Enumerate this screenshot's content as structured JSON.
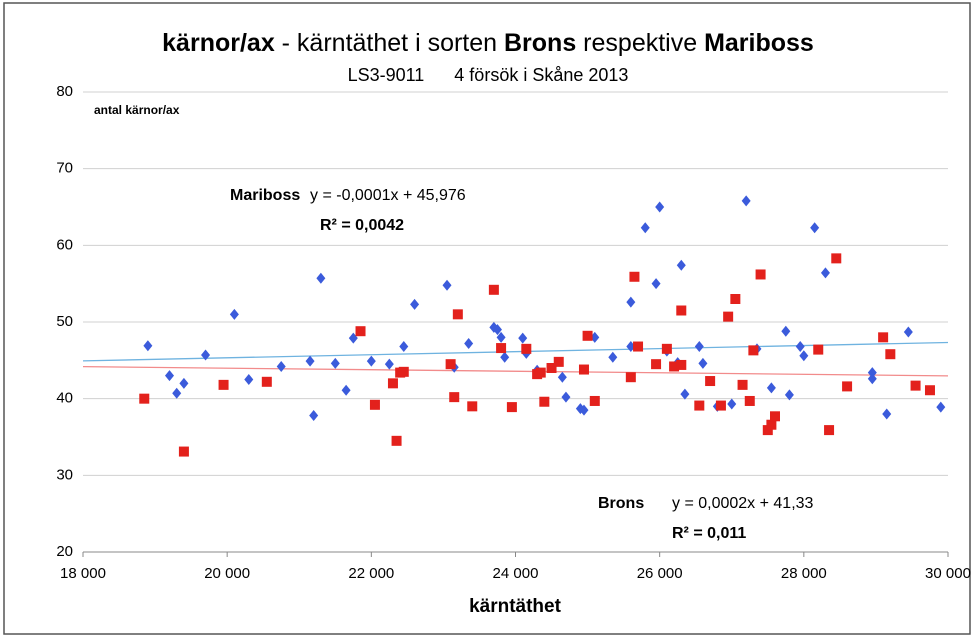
{
  "chart_data": {
    "type": "scatter",
    "title": [
      "kärnor/ax",
      " - kärntäthet i sorten ",
      "Brons",
      " respektive ",
      "Mariboss"
    ],
    "subtitle": "LS3-9011      4 försök i Skåne 2013",
    "ylabel": "antal kärnor/ax",
    "xlabel": "kärntäthet",
    "xlim": [
      18000,
      30000
    ],
    "xticks": [
      {
        "value": 18000,
        "label": "18 000"
      },
      {
        "value": 20000,
        "label": "20 000"
      },
      {
        "value": 22000,
        "label": "22 000"
      },
      {
        "value": 24000,
        "label": "24 000"
      },
      {
        "value": 26000,
        "label": "26 000"
      },
      {
        "value": 28000,
        "label": "28 000"
      },
      {
        "value": 30000,
        "label": "30 000"
      }
    ],
    "ylim": [
      20,
      80
    ],
    "yticks": [
      20,
      30,
      40,
      50,
      60,
      70,
      80
    ],
    "grid": true,
    "series": [
      {
        "name": "Brons",
        "color": "#3b5bdb",
        "marker": "diamond",
        "label_color": "#1f3a8a",
        "trend_color": "#6fb3e0",
        "equation": "y = 0,0002x + 41,33",
        "r2_label": "R² = 0,011",
        "trend": {
          "slope": 0.0002,
          "intercept": 41.33
        },
        "x": [
          18900,
          19200,
          19300,
          19400,
          19700,
          20100,
          20300,
          20750,
          21150,
          21200,
          21300,
          21500,
          21650,
          21750,
          22000,
          22250,
          22450,
          22600,
          23050,
          23150,
          23350,
          23700,
          23750,
          23800,
          23850,
          24100,
          24150,
          24300,
          24650,
          24700,
          24900,
          24950,
          25100,
          25350,
          25600,
          25600,
          25800,
          25950,
          26000,
          26100,
          26250,
          26300,
          26350,
          26550,
          26600,
          26800,
          27000,
          27200,
          27350,
          27550,
          27750,
          27800,
          27950,
          28000,
          28150,
          28300,
          28950,
          28950,
          29150,
          29450,
          29900
        ],
        "values": [
          46.9,
          43.0,
          40.7,
          42.0,
          45.7,
          51.0,
          42.5,
          44.2,
          44.9,
          37.8,
          55.7,
          44.6,
          41.1,
          47.9,
          44.9,
          44.5,
          46.8,
          52.3,
          54.8,
          44.1,
          47.2,
          49.3,
          49.0,
          48.0,
          45.4,
          47.9,
          45.9,
          43.7,
          42.8,
          40.2,
          38.7,
          38.5,
          48.0,
          45.4,
          52.6,
          46.8,
          62.3,
          55.0,
          65.0,
          46.2,
          44.7,
          57.4,
          40.6,
          46.8,
          44.6,
          39.0,
          39.3,
          65.8,
          46.5,
          41.4,
          48.8,
          40.5,
          46.8,
          45.6,
          62.3,
          56.4,
          42.6,
          43.4,
          38.0,
          48.7,
          38.9
        ]
      },
      {
        "name": "Mariboss",
        "color": "#e3211c",
        "marker": "square",
        "label_color": "#e3211c",
        "trend_color": "#f28b8b",
        "equation": "y = -0,0001x + 45,976",
        "r2_label": "R² = 0,0042",
        "trend": {
          "slope": -0.0001,
          "intercept": 45.976
        },
        "x": [
          18850,
          19400,
          19950,
          20550,
          21850,
          22050,
          22300,
          22350,
          22400,
          22450,
          23100,
          23150,
          23200,
          23400,
          23700,
          23800,
          23950,
          24150,
          24300,
          24350,
          24400,
          24500,
          24600,
          24950,
          25000,
          25100,
          25600,
          25650,
          25700,
          25950,
          26100,
          26200,
          26300,
          26300,
          26550,
          26700,
          26850,
          26950,
          27050,
          27150,
          27250,
          27300,
          27400,
          27500,
          27550,
          27600,
          28200,
          28350,
          28450,
          28600,
          29100,
          29200,
          29550,
          29750
        ],
        "values": [
          40.0,
          33.1,
          41.8,
          42.2,
          48.8,
          39.2,
          42.0,
          34.5,
          43.4,
          43.5,
          44.5,
          40.2,
          51.0,
          39.0,
          54.2,
          46.6,
          38.9,
          46.5,
          43.2,
          43.4,
          39.6,
          44.0,
          44.8,
          43.8,
          48.2,
          39.7,
          42.8,
          55.9,
          46.8,
          44.5,
          46.5,
          44.2,
          44.4,
          51.5,
          39.1,
          42.3,
          39.1,
          50.7,
          53.0,
          41.8,
          39.7,
          46.3,
          56.2,
          35.9,
          36.6,
          37.7,
          46.4,
          35.9,
          58.3,
          41.6,
          48.0,
          45.8,
          41.7,
          41.1
        ]
      }
    ]
  }
}
